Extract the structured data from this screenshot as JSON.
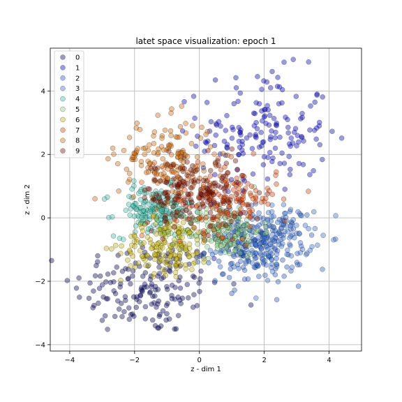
{
  "chart_data": {
    "type": "scatter",
    "title": "latet space visualization: epoch 1",
    "xlabel": "z - dim 1",
    "ylabel": "z - dim 2",
    "xlim": [
      -4.6,
      5.0
    ],
    "ylim": [
      -4.2,
      5.35
    ],
    "xticks": [
      -4,
      -2,
      0,
      2,
      4
    ],
    "yticks": [
      -4,
      -2,
      0,
      2,
      4
    ],
    "grid": true,
    "legend_position": "upper-left",
    "series": [
      {
        "name": "0",
        "color": "#000066",
        "cx": -1.6,
        "cy": -2.2,
        "sx": 1.15,
        "sy": 0.75
      },
      {
        "name": "1",
        "color": "#0000cc",
        "cx": 2.0,
        "cy": 2.7,
        "sx": 1.0,
        "sy": 0.95
      },
      {
        "name": "2",
        "color": "#1f5bd0",
        "cx": 1.7,
        "cy": -1.0,
        "sx": 0.75,
        "sy": 0.55
      },
      {
        "name": "3",
        "color": "#3370d6",
        "cx": 2.1,
        "cy": -0.6,
        "sx": 0.7,
        "sy": 0.5
      },
      {
        "name": "4",
        "color": "#33c0a8",
        "cx": -1.4,
        "cy": 0.2,
        "sx": 0.6,
        "sy": 0.4
      },
      {
        "name": "5",
        "color": "#88d080",
        "cx": 0.7,
        "cy": -0.4,
        "sx": 0.6,
        "sy": 0.4
      },
      {
        "name": "6",
        "color": "#c8b400",
        "cx": -1.0,
        "cy": -0.9,
        "sx": 0.7,
        "sy": 0.45
      },
      {
        "name": "7",
        "color": "#e04000",
        "cx": 0.8,
        "cy": 0.6,
        "sx": 0.8,
        "sy": 0.55
      },
      {
        "name": "8",
        "color": "#d46a00",
        "cx": -1.0,
        "cy": 1.8,
        "sx": 0.75,
        "sy": 0.65
      },
      {
        "name": "9",
        "color": "#7a1000",
        "cx": -0.2,
        "cy": 0.8,
        "sx": 0.8,
        "sy": 0.55
      }
    ]
  }
}
